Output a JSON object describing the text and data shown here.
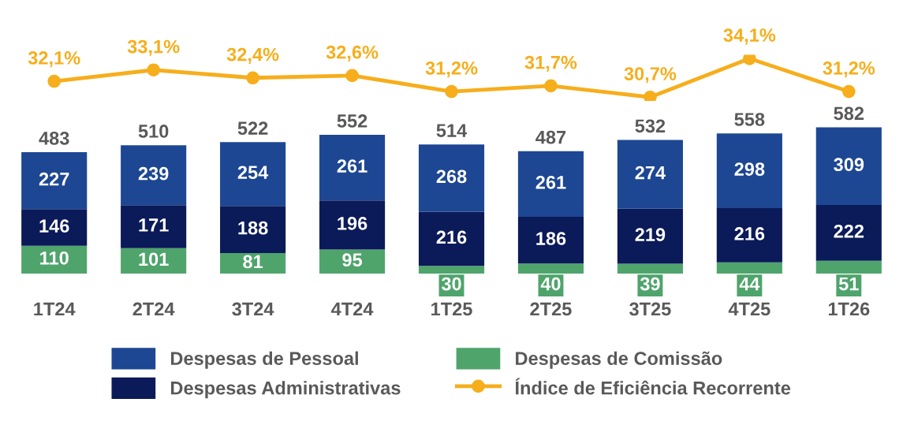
{
  "chart_data": [
    {
      "type": "line",
      "categories": [
        null,
        null,
        null,
        null,
        null,
        null,
        null,
        null,
        null
      ],
      "tick_labels": false,
      "legend": "bottom",
      "series": [
        {
          "name": "Índice de Eficiência Recorrente",
          "color": "#f6ae1c",
          "marker": "circle",
          "values": [
            32.1,
            33.1,
            32.4,
            32.6,
            31.2,
            31.7,
            30.7,
            34.1,
            31.2
          ],
          "value_labels": [
            "32,1%",
            "33,1%",
            "32,4%",
            "32,6%",
            "31,2%",
            "31,7%",
            "30,7%",
            "34,1%",
            "31,2%"
          ]
        }
      ]
    },
    {
      "type": "bar",
      "stacked": true,
      "categories": [
        "1T24",
        "2T24",
        "3T24",
        "4T24",
        "1T25",
        "2T25",
        "3T25",
        "4T25",
        "1T26"
      ],
      "series": [
        {
          "name": "Despesas de Comissão",
          "color": "#4fa46c",
          "values": [
            110,
            101,
            81,
            95,
            30,
            40,
            39,
            44,
            51
          ]
        },
        {
          "name": "Despesas Administrativas",
          "color": "#0b1a58",
          "values": [
            146,
            171,
            188,
            196,
            216,
            186,
            219,
            216,
            222
          ]
        },
        {
          "name": "Despesas de Pessoal",
          "color": "#1d4793",
          "values": [
            227,
            239,
            254,
            261,
            268,
            261,
            274,
            298,
            309
          ]
        }
      ],
      "totals": [
        "483",
        "510",
        "522",
        "552",
        "514",
        "487",
        "532",
        "558",
        "582"
      ],
      "data_labels": true,
      "tick_labels": "x",
      "legend": "bottom",
      "grid": false
    }
  ]
}
